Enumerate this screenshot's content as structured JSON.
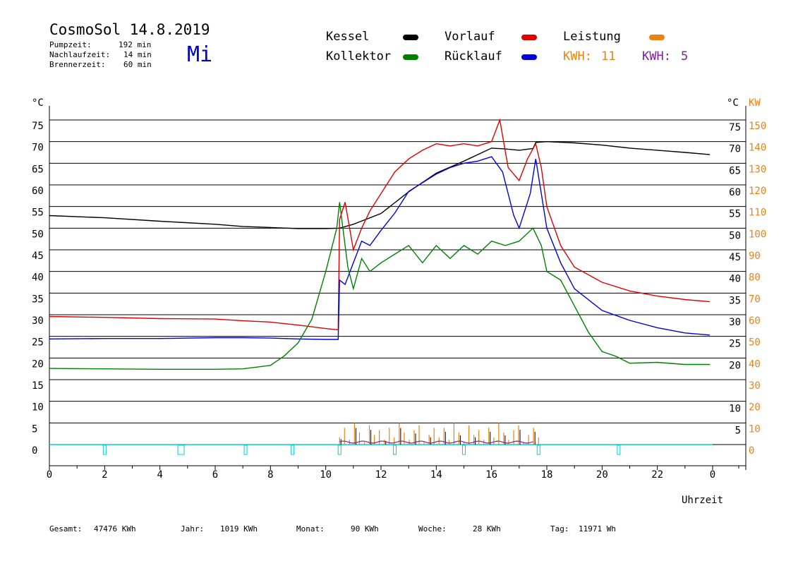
{
  "header": {
    "title": "CosmoSol 14.8.2019",
    "weekday": "Mi",
    "info": [
      {
        "label": "Pumpzeit:",
        "value": "192 min"
      },
      {
        "label": "Nachlaufzeit:",
        "value": "14 min"
      },
      {
        "label": "Brennerzeit:",
        "value": "60 min"
      }
    ]
  },
  "legend": {
    "kessel": {
      "label": "Kessel",
      "color": "#000000"
    },
    "kollektor": {
      "label": "Kollektor",
      "color": "#008000"
    },
    "vorlauf": {
      "label": "Vorlauf",
      "color": "#e00000"
    },
    "ruecklauf": {
      "label": "Rücklauf",
      "color": "#0000e0"
    },
    "leistung": {
      "label": "Leistung",
      "color": "#f08010"
    },
    "kwh1": {
      "label": "KWH:",
      "value": "11",
      "color": "#f08010"
    },
    "kwh2": {
      "label": "KWH:",
      "value": "5",
      "color": "#8020a0"
    }
  },
  "axes": {
    "left_unit": "°C",
    "right_unit_c": "°C",
    "right_unit_kw": "KW",
    "xlabel": "Uhrzeit"
  },
  "footer": {
    "gesamt": {
      "label": "Gesamt:",
      "value": "47476 KWh"
    },
    "jahr": {
      "label": "Jahr:",
      "value": "1019 KWh"
    },
    "monat": {
      "label": "Monat:",
      "value": "90 KWh"
    },
    "woche": {
      "label": "Woche:",
      "value": "28 KWh"
    },
    "tag": {
      "label": "Tag:",
      "value": "11971 Wh"
    }
  },
  "chart_data": {
    "type": "line",
    "xlim": [
      0,
      24
    ],
    "ylim": [
      0,
      75
    ],
    "x_ticks": [
      "0",
      "2",
      "4",
      "6",
      "8",
      "10",
      "12",
      "14",
      "16",
      "18",
      "20",
      "22",
      "0"
    ],
    "y_ticks_left": [
      "0",
      "5",
      "10",
      "15",
      "20",
      "25",
      "30",
      "35",
      "40",
      "45",
      "50",
      "55",
      "60",
      "65",
      "70",
      "75"
    ],
    "y_ticks_right_c": [
      "5",
      "10",
      "20",
      "25",
      "30",
      "35",
      "40",
      "45",
      "50",
      "55",
      "60",
      "65",
      "70",
      "75"
    ],
    "y_ticks_right_kw": [
      "0",
      "10",
      "20",
      "30",
      "40",
      "50",
      "60",
      "70",
      "80",
      "90",
      "100",
      "110",
      "120",
      "130",
      "140",
      "150"
    ],
    "grid": true,
    "series": [
      {
        "name": "Kessel",
        "color": "#000000",
        "points": [
          [
            0,
            52.9
          ],
          [
            2,
            52.4
          ],
          [
            4,
            51.6
          ],
          [
            6,
            50.9
          ],
          [
            7,
            50.4
          ],
          [
            9,
            49.9
          ],
          [
            10,
            49.9
          ],
          [
            10.5,
            50.0
          ],
          [
            11,
            50.9
          ],
          [
            12,
            53.4
          ],
          [
            13,
            58.4
          ],
          [
            14,
            62.7
          ],
          [
            15,
            65.5
          ],
          [
            16,
            68.5
          ],
          [
            16.5,
            68.3
          ],
          [
            17,
            68.0
          ],
          [
            17.5,
            68.4
          ],
          [
            17.6,
            69.8
          ],
          [
            18,
            70.0
          ],
          [
            19,
            69.7
          ],
          [
            20,
            69.2
          ],
          [
            21,
            68.5
          ],
          [
            22,
            68.0
          ],
          [
            23,
            67.5
          ],
          [
            23.9,
            67.0
          ]
        ]
      },
      {
        "name": "Vorlauf",
        "color": "#e00000",
        "points": [
          [
            0,
            29.6
          ],
          [
            2,
            29.4
          ],
          [
            4,
            29.1
          ],
          [
            6,
            29.0
          ],
          [
            7,
            28.6
          ],
          [
            8,
            28.3
          ],
          [
            9,
            27.6
          ],
          [
            10,
            26.8
          ],
          [
            10.45,
            26.5
          ],
          [
            10.5,
            52.0
          ],
          [
            10.7,
            56.0
          ],
          [
            11,
            45.0
          ],
          [
            11.3,
            50.0
          ],
          [
            11.6,
            54.0
          ],
          [
            12,
            58.0
          ],
          [
            12.5,
            63.0
          ],
          [
            13,
            66.0
          ],
          [
            13.5,
            68.0
          ],
          [
            14,
            69.5
          ],
          [
            14.5,
            69.0
          ],
          [
            15,
            69.5
          ],
          [
            15.5,
            69.0
          ],
          [
            16,
            70.0
          ],
          [
            16.3,
            75.0
          ],
          [
            16.6,
            64.0
          ],
          [
            17,
            61.0
          ],
          [
            17.3,
            66.0
          ],
          [
            17.6,
            69.5
          ],
          [
            17.8,
            64.0
          ],
          [
            18,
            55.0
          ],
          [
            18.5,
            46.0
          ],
          [
            19,
            41.0
          ],
          [
            20,
            37.5
          ],
          [
            21,
            35.5
          ],
          [
            22,
            34.3
          ],
          [
            23,
            33.5
          ],
          [
            23.9,
            33.0
          ]
        ]
      },
      {
        "name": "Rücklauf",
        "color": "#0000e0",
        "points": [
          [
            0,
            24.4
          ],
          [
            2,
            24.5
          ],
          [
            4,
            24.5
          ],
          [
            6,
            24.7
          ],
          [
            7,
            24.7
          ],
          [
            8,
            24.6
          ],
          [
            9,
            24.4
          ],
          [
            10,
            24.3
          ],
          [
            10.45,
            24.3
          ],
          [
            10.5,
            38.0
          ],
          [
            10.7,
            37.0
          ],
          [
            11,
            42.0
          ],
          [
            11.3,
            47.0
          ],
          [
            11.6,
            46.0
          ],
          [
            12,
            49.5
          ],
          [
            12.5,
            53.5
          ],
          [
            13,
            58.5
          ],
          [
            13.5,
            60.5
          ],
          [
            14,
            62.5
          ],
          [
            14.5,
            64.0
          ],
          [
            15,
            65.0
          ],
          [
            15.5,
            65.5
          ],
          [
            16,
            66.5
          ],
          [
            16.4,
            63.0
          ],
          [
            16.8,
            53.0
          ],
          [
            17,
            50.0
          ],
          [
            17.4,
            58.0
          ],
          [
            17.6,
            66.0
          ],
          [
            17.8,
            58.0
          ],
          [
            18,
            50.0
          ],
          [
            18.5,
            42.0
          ],
          [
            19,
            36.0
          ],
          [
            20,
            31.0
          ],
          [
            21,
            28.7
          ],
          [
            22,
            27.0
          ],
          [
            23,
            25.8
          ],
          [
            23.9,
            25.3
          ]
        ]
      },
      {
        "name": "Kollektor",
        "color": "#008000",
        "points": [
          [
            0,
            17.6
          ],
          [
            2,
            17.5
          ],
          [
            4,
            17.4
          ],
          [
            6,
            17.4
          ],
          [
            7,
            17.5
          ],
          [
            8,
            18.3
          ],
          [
            8.5,
            20.5
          ],
          [
            9,
            23.5
          ],
          [
            9.5,
            29.0
          ],
          [
            10,
            40.0
          ],
          [
            10.4,
            50.0
          ],
          [
            10.5,
            56.0
          ],
          [
            10.8,
            41.0
          ],
          [
            11,
            36.0
          ],
          [
            11.3,
            43.0
          ],
          [
            11.6,
            40.0
          ],
          [
            12,
            42.0
          ],
          [
            12.5,
            44.0
          ],
          [
            13,
            46.0
          ],
          [
            13.5,
            42.0
          ],
          [
            14,
            46.0
          ],
          [
            14.5,
            43.0
          ],
          [
            15,
            46.0
          ],
          [
            15.5,
            44.0
          ],
          [
            16,
            47.0
          ],
          [
            16.5,
            46.0
          ],
          [
            17,
            47.0
          ],
          [
            17.5,
            50.0
          ],
          [
            17.8,
            46.0
          ],
          [
            18,
            40.0
          ],
          [
            18.5,
            38.0
          ],
          [
            19,
            32.0
          ],
          [
            19.5,
            26.0
          ],
          [
            20,
            21.5
          ],
          [
            20.5,
            20.4
          ],
          [
            21,
            18.8
          ],
          [
            22,
            19.0
          ],
          [
            23,
            18.5
          ],
          [
            23.9,
            18.5
          ]
        ]
      }
    ]
  }
}
